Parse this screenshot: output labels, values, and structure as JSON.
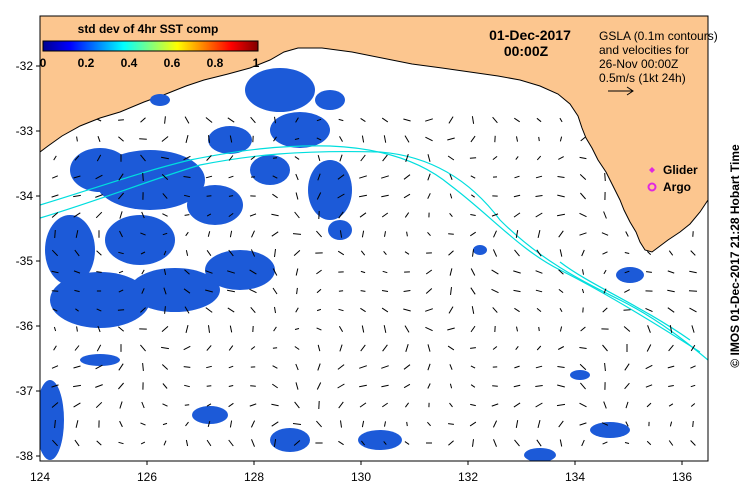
{
  "map": {
    "date_line": "01-Dec-2017",
    "time_line": "00:00Z",
    "colorbar": {
      "title": "std dev of 4hr SST comp",
      "ticks": [
        "0",
        "0.2",
        "0.4",
        "0.6",
        "0.8",
        "1"
      ]
    },
    "info_lines": [
      "GSLA (0.1m contours)",
      "and velocities for",
      "26-Nov 00:00Z",
      "0.5m/s (1kt 24h)"
    ],
    "legend": {
      "glider": "Glider",
      "argo": "Argo"
    },
    "x_ticks": [
      "124",
      "126",
      "128",
      "130",
      "132",
      "134",
      "136"
    ],
    "y_ticks": [
      "-32",
      "-33",
      "-34",
      "-35",
      "-36",
      "-37",
      "-38"
    ],
    "credit": "© IMOS 01-Dec-2017 21:28 Hobart Time",
    "colors": {
      "land": "#fcc68f",
      "contour": "#00dede",
      "patch": "#1c5ad8",
      "glider": "#e028e0",
      "argo": "#e028e0"
    }
  }
}
